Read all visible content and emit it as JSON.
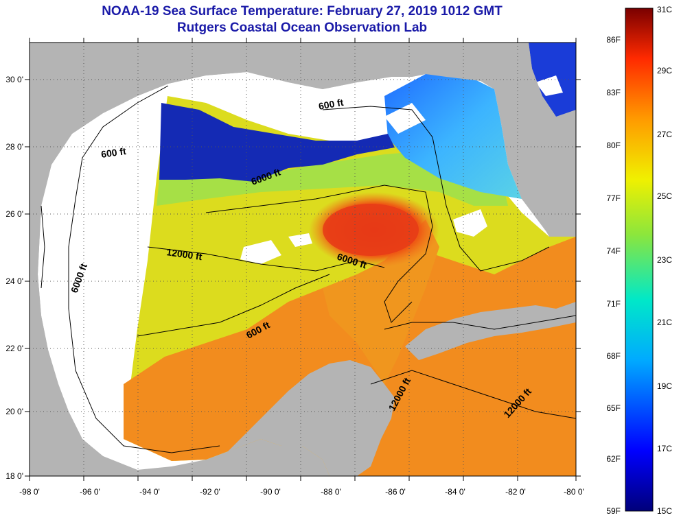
{
  "title": "NOAA-19 Sea Surface Temperature:  February 27, 2019 1012 GMT",
  "subtitle": "Rutgers Coastal Ocean Observation Lab",
  "axes": {
    "lon_ticks": [
      "-98 0'",
      "-96 0'",
      "-94 0'",
      "-92 0'",
      "-90 0'",
      "-88 0'",
      "-86 0'",
      "-84 0'",
      "-82 0'",
      "-80 0'"
    ],
    "lat_ticks": [
      "30 0'",
      "28 0'",
      "26 0'",
      "24 0'",
      "22 0'",
      "20 0'",
      "18 0'"
    ]
  },
  "contour_labels": [
    {
      "id": "c1",
      "text": "600 ft"
    },
    {
      "id": "c2",
      "text": "600 ft"
    },
    {
      "id": "c3",
      "text": "6000 ft"
    },
    {
      "id": "c4",
      "text": "12000 ft"
    },
    {
      "id": "c5",
      "text": "6000 ft"
    },
    {
      "id": "c6",
      "text": "6000 ft"
    },
    {
      "id": "c7",
      "text": "600 ft"
    },
    {
      "id": "c8",
      "text": "12000 ft"
    },
    {
      "id": "c9",
      "text": "12000 ft"
    }
  ],
  "colorbar": {
    "fahrenheit": [
      "86F",
      "83F",
      "80F",
      "77F",
      "74F",
      "71F",
      "68F",
      "65F",
      "62F",
      "59F"
    ],
    "celsius": [
      "31C",
      "29C",
      "27C",
      "25C",
      "23C",
      "21C",
      "19C",
      "17C",
      "15C"
    ]
  },
  "colors": {
    "land": "#b4b4b4",
    "cloud": "#ffffff",
    "title": "#1a1aa8"
  }
}
